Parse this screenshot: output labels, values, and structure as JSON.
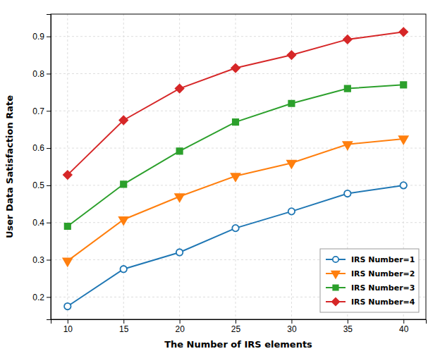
{
  "chart_data": {
    "type": "line",
    "xlabel": "The Number of IRS elements",
    "ylabel": "User Data Satisfaction Rate",
    "x": [
      10,
      15,
      20,
      25,
      30,
      35,
      40
    ],
    "series": [
      {
        "name": "IRS Number=1",
        "color": "#1f77b4",
        "marker": "circle-open",
        "values": [
          0.175,
          0.275,
          0.32,
          0.385,
          0.43,
          0.478,
          0.5
        ]
      },
      {
        "name": "IRS Number=2",
        "color": "#ff7f0e",
        "marker": "triangle-down",
        "values": [
          0.297,
          0.408,
          0.47,
          0.525,
          0.56,
          0.61,
          0.625
        ]
      },
      {
        "name": "IRS Number=3",
        "color": "#2ca02c",
        "marker": "square",
        "values": [
          0.39,
          0.503,
          0.592,
          0.67,
          0.72,
          0.76,
          0.77
        ]
      },
      {
        "name": "IRS Number=4",
        "color": "#d62728",
        "marker": "diamond",
        "values": [
          0.528,
          0.675,
          0.76,
          0.815,
          0.85,
          0.892,
          0.912
        ]
      }
    ],
    "xlim": [
      8.5,
      42
    ],
    "ylim": [
      0.14,
      0.96
    ],
    "xticks": [
      10,
      15,
      20,
      25,
      30,
      35,
      40
    ],
    "yticks": [
      0.2,
      0.3,
      0.4,
      0.5,
      0.6,
      0.7,
      0.8,
      0.9
    ],
    "grid": true,
    "legend": "lower right"
  }
}
